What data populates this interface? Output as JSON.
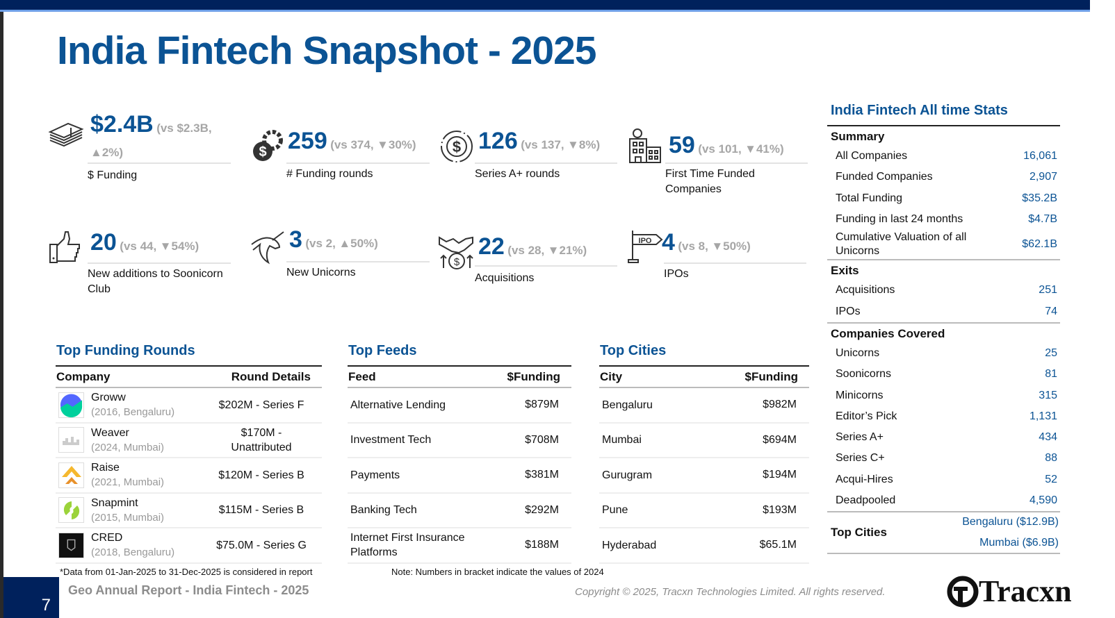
{
  "title": "India Fintech Snapshot - 2025",
  "metrics": [
    {
      "icon": "money-stack-icon",
      "value": "$2.4B",
      "vs": "(vs $2.3B,",
      "dir": "up",
      "pct": "2%",
      "close": ")",
      "label": "$ Funding"
    },
    {
      "icon": "dollar-gear-icon",
      "value": "259",
      "vs": "(vs 374,",
      "dir": "down",
      "pct": "30%",
      "close": ")",
      "label": "# Funding rounds"
    },
    {
      "icon": "dollar-cycle-icon",
      "value": "126",
      "vs": "(vs 137,",
      "dir": "down",
      "pct": "8%",
      "close": ")",
      "label": "Series A+ rounds"
    },
    {
      "icon": "building-dollar-icon",
      "value": "59",
      "vs": "(vs 101,",
      "dir": "down",
      "pct": "41%",
      "close": ")",
      "label": "First Time Funded Companies"
    },
    {
      "icon": "thumbs-up-icon",
      "value": "20",
      "vs": "(vs 44,",
      "dir": "down",
      "pct": "54%",
      "close": ")",
      "label": "New additions to Soonicorn Club"
    },
    {
      "icon": "unicorn-icon",
      "value": "3",
      "vs": "(vs 2,",
      "dir": "up",
      "pct": "50%",
      "close": ")",
      "label": "New Unicorns"
    },
    {
      "icon": "handshake-dollar-icon",
      "value": "22",
      "vs": "(vs 28,",
      "dir": "down",
      "pct": "21%",
      "close": ")",
      "label": "Acquisitions"
    },
    {
      "icon": "ipo-sign-icon",
      "value": "4",
      "vs": "(vs 8,",
      "dir": "down",
      "pct": "50%",
      "close": ")",
      "label": "IPOs"
    }
  ],
  "arrows": {
    "up": "▲",
    "down": "▼"
  },
  "colors": {
    "brand": "#0b5394",
    "up": "#00a650",
    "down": "#e00000",
    "navy": "#00215c"
  },
  "top_funding_rounds": {
    "title": "Top Funding Rounds",
    "headers": [
      "Company",
      "Round Details"
    ],
    "rows": [
      {
        "name": "Groww",
        "sub": "(2016, Bengaluru)",
        "details": "$202M - Series F",
        "logo": "groww-logo"
      },
      {
        "name": "Weaver",
        "sub": "(2024, Mumbai)",
        "details": "$170M - Unattributed",
        "logo": "weaver-logo"
      },
      {
        "name": "Raise",
        "sub": "(2021, Mumbai)",
        "details": "$120M - Series B",
        "logo": "raise-logo"
      },
      {
        "name": "Snapmint",
        "sub": "(2015, Mumbai)",
        "details": "$115M - Series B",
        "logo": "snapmint-logo"
      },
      {
        "name": "CRED",
        "sub": "(2018, Bengaluru)",
        "details": "$75.0M - Series G",
        "logo": "cred-logo"
      }
    ]
  },
  "top_feeds": {
    "title": "Top Feeds",
    "headers": [
      "Feed",
      "$Funding"
    ],
    "rows": [
      {
        "name": "Alternative Lending",
        "value": "$879M"
      },
      {
        "name": "Investment Tech",
        "value": "$708M"
      },
      {
        "name": "Payments",
        "value": "$381M"
      },
      {
        "name": "Banking Tech",
        "value": "$292M"
      },
      {
        "name": "Internet First Insurance Platforms",
        "value": "$188M"
      }
    ]
  },
  "top_cities": {
    "title": "Top Cities",
    "headers": [
      "City",
      "$Funding"
    ],
    "rows": [
      {
        "name": "Bengaluru",
        "value": "$982M"
      },
      {
        "name": "Mumbai",
        "value": "$694M"
      },
      {
        "name": "Gurugram",
        "value": "$194M"
      },
      {
        "name": "Pune",
        "value": "$193M"
      },
      {
        "name": "Hyderabad",
        "value": "$65.1M"
      }
    ]
  },
  "all_time_stats": {
    "title": "India Fintech All time Stats",
    "sections": [
      {
        "heading": "Summary",
        "rows": [
          {
            "label": "All Companies",
            "value": "16,061"
          },
          {
            "label": "Funded Companies",
            "value": "2,907"
          },
          {
            "label": "Total Funding",
            "value": "$35.2B"
          },
          {
            "label": "Funding in last 24 months",
            "value": "$4.7B"
          },
          {
            "label": "Cumulative Valuation of all Unicorns",
            "value": "$62.1B"
          }
        ]
      },
      {
        "heading": "Exits",
        "rows": [
          {
            "label": "Acquisitions",
            "value": "251"
          },
          {
            "label": "IPOs",
            "value": "74"
          }
        ]
      },
      {
        "heading": "Companies Covered",
        "rows": [
          {
            "label": "Unicorns",
            "value": "25"
          },
          {
            "label": "Soonicorns",
            "value": "81"
          },
          {
            "label": "Minicorns",
            "value": "315"
          },
          {
            "label": "Editor’s Pick",
            "value": "1,131"
          },
          {
            "label": "Series A+",
            "value": "434"
          },
          {
            "label": "Series C+",
            "value": "88"
          },
          {
            "label": "Acqui-Hires",
            "value": "52"
          },
          {
            "label": "Deadpooled",
            "value": "4,590"
          }
        ]
      }
    ],
    "top_cities_label": "Top Cities",
    "top_cities": [
      "Bengaluru ($12.9B)",
      "Mumbai ($6.9B)"
    ]
  },
  "footnote_data": "*Data from 01-Jan-2025 to 31-Dec-2025 is considered in report",
  "footnote_note": "Note: Numbers in bracket indicate the values of 2024",
  "page_number": "7",
  "footer_title": "Geo Annual Report - India Fintech - 2025",
  "copyright": "Copyright © 2025, Tracxn Technologies Limited. All rights reserved.",
  "brand": "Tracxn"
}
